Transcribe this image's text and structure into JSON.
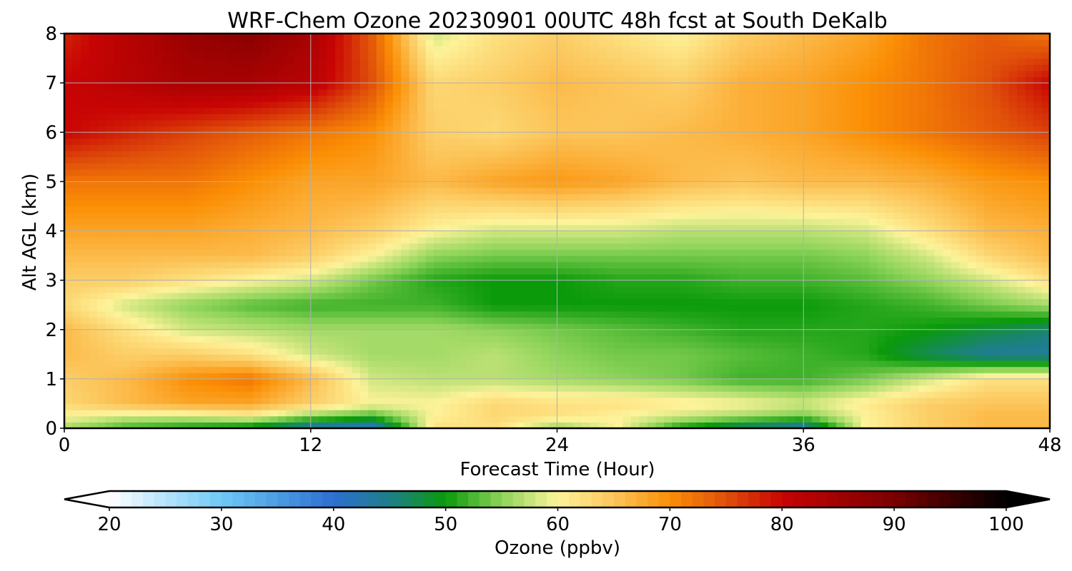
{
  "chart_data": {
    "type": "heatmap",
    "title": "WRF-Chem Ozone  20230901 00UTC 48h fcst at South DeKalb",
    "xlabel": "Forecast Time (Hour)",
    "ylabel": "Alt AGL (km)",
    "xlim": [
      0,
      48
    ],
    "ylim": [
      0,
      8
    ],
    "x_ticks": [
      "0",
      "12",
      "24",
      "36",
      "48"
    ],
    "y_ticks": [
      "0",
      "1",
      "2",
      "3",
      "4",
      "5",
      "6",
      "7",
      "8"
    ],
    "grid": true,
    "x": [
      0,
      3,
      6,
      9,
      12,
      15,
      18,
      21,
      24,
      27,
      30,
      33,
      36,
      39,
      42,
      45,
      48
    ],
    "y": [
      0,
      0.25,
      0.5,
      1,
      1.5,
      2,
      2.5,
      3,
      3.5,
      4,
      5,
      6,
      7,
      8
    ],
    "z": [
      [
        56,
        52,
        50,
        48,
        42,
        40,
        62,
        62,
        55,
        60,
        50,
        45,
        42,
        60,
        64,
        66,
        66
      ],
      [
        60,
        58,
        58,
        60,
        55,
        52,
        60,
        63,
        62,
        60,
        58,
        56,
        54,
        60,
        64,
        66,
        66
      ],
      [
        63,
        66,
        68,
        68,
        64,
        60,
        60,
        63,
        62,
        62,
        61,
        60,
        58,
        61,
        64,
        65,
        65
      ],
      [
        64,
        66,
        70,
        72,
        66,
        58,
        57,
        57,
        56,
        55,
        54,
        52,
        52,
        54,
        58,
        62,
        62
      ],
      [
        66,
        64,
        64,
        62,
        58,
        56,
        56,
        57,
        55,
        54,
        54,
        53,
        52,
        51,
        47,
        44,
        44
      ],
      [
        66,
        62,
        58,
        57,
        56,
        56,
        56,
        55,
        54,
        53,
        52,
        51,
        51,
        51,
        50,
        48,
        46
      ],
      [
        63,
        58,
        55,
        53,
        52,
        52,
        52,
        50,
        50,
        50,
        50,
        50,
        50,
        51,
        52,
        54,
        56
      ],
      [
        64,
        64,
        62,
        60,
        58,
        54,
        51,
        50,
        50,
        51,
        51,
        52,
        52,
        53,
        55,
        58,
        62
      ],
      [
        66,
        66,
        66,
        66,
        64,
        60,
        55,
        54,
        54,
        54,
        54,
        54,
        54,
        55,
        58,
        63,
        66
      ],
      [
        68,
        68,
        68,
        67,
        66,
        64,
        60,
        58,
        58,
        58,
        57,
        57,
        57,
        58,
        62,
        66,
        67
      ],
      [
        72,
        72,
        72,
        70,
        68,
        68,
        66,
        68,
        69,
        68,
        66,
        65,
        66,
        66,
        67,
        69,
        70
      ],
      [
        80,
        78,
        76,
        74,
        72,
        70,
        64,
        63,
        65,
        65,
        66,
        67,
        68,
        70,
        72,
        74,
        76
      ],
      [
        80,
        82,
        84,
        84,
        82,
        75,
        63,
        64,
        66,
        65,
        64,
        67,
        68,
        70,
        72,
        75,
        80
      ],
      [
        78,
        82,
        86,
        88,
        84,
        74,
        58,
        62,
        64,
        62,
        60,
        64,
        66,
        68,
        72,
        74,
        72
      ]
    ],
    "colorbar": {
      "label": "Ozone  (ppbv)",
      "min": 20,
      "max": 100,
      "tick_values": [
        20,
        30,
        40,
        50,
        60,
        70,
        80,
        90,
        100
      ],
      "tick_labels": [
        "20",
        "30",
        "40",
        "50",
        "60",
        "70",
        "80",
        "90",
        "100"
      ],
      "extend": "both",
      "color_stops": [
        [
          20,
          "#ffffff"
        ],
        [
          30,
          "#6ec8f5"
        ],
        [
          40,
          "#2c6fd1"
        ],
        [
          45,
          "#1e7f8a"
        ],
        [
          50,
          "#0a9a0a"
        ],
        [
          55,
          "#8ed45a"
        ],
        [
          60,
          "#fdf39a"
        ],
        [
          65,
          "#fcc55a"
        ],
        [
          70,
          "#fb8f05"
        ],
        [
          75,
          "#e0500a"
        ],
        [
          80,
          "#c80404"
        ],
        [
          90,
          "#7a0000"
        ],
        [
          100,
          "#000000"
        ]
      ]
    }
  }
}
